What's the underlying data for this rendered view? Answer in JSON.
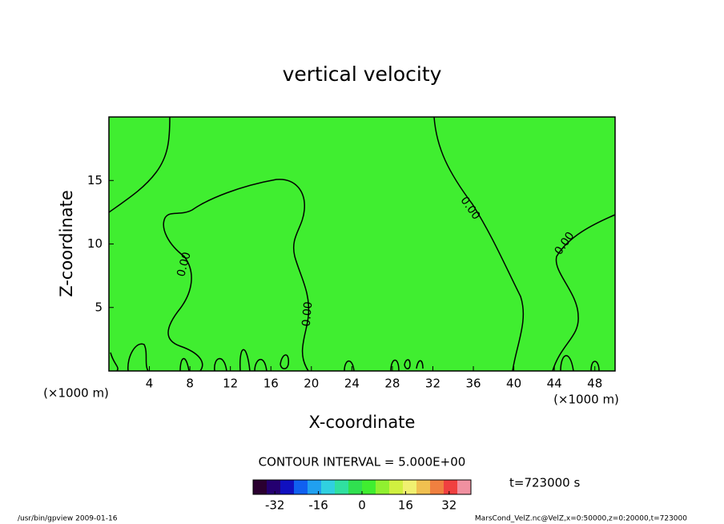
{
  "chart_data": {
    "type": "contour",
    "title": "vertical velocity",
    "xlabel": "X-coordinate",
    "ylabel": "Z-coordinate",
    "x_unit_left": "(×1000 m)",
    "x_unit_right": "(×1000 m)",
    "xlim": [
      0,
      50
    ],
    "ylim": [
      0,
      20
    ],
    "xticks": [
      4,
      8,
      12,
      16,
      20,
      24,
      28,
      32,
      36,
      40,
      44,
      48
    ],
    "yticks": [
      5,
      10,
      15
    ],
    "background_color": "#40ee30",
    "contour_color": "#000000",
    "contour_labels": [
      "0.00",
      "0.00",
      "0.00",
      "0.00"
    ],
    "contour_interval": "CONTOUR INTERVAL = 5.000E+00",
    "time_label": "t=723000 s",
    "colorbar": {
      "clim": [
        -40,
        40
      ],
      "ticks": [
        -32,
        -16,
        0,
        16,
        32
      ],
      "colors": [
        "#2a0030",
        "#240070",
        "#1010c0",
        "#1060f0",
        "#20a0f0",
        "#30d0e0",
        "#30e0a0",
        "#30e050",
        "#40ee30",
        "#90f030",
        "#d0f040",
        "#f0f070",
        "#f0c050",
        "#f08040",
        "#f04040",
        "#f090a0"
      ]
    },
    "footer_left": "/usr/bin/gpview  2009-01-16",
    "footer_right": "MarsCond_VelZ.nc@VelZ,x=0:50000,z=0:20000,t=723000"
  }
}
